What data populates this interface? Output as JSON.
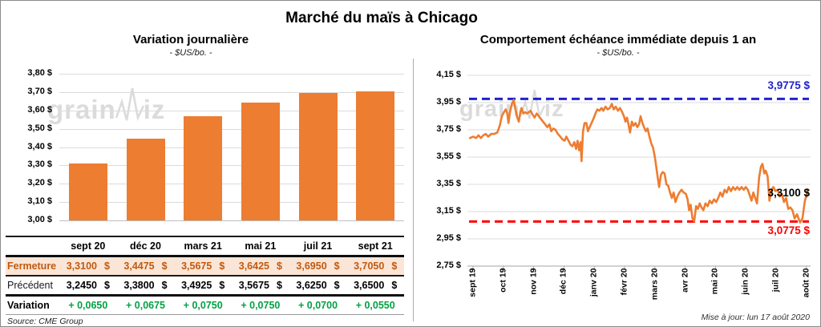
{
  "page": {
    "title": "Marché du maïs à Chicago",
    "updated_note": "Mise à jour: lun 17 août 2020",
    "source_note": "Source: CME Group",
    "watermark": {
      "part1": "grain",
      "part2": "iz"
    }
  },
  "colors": {
    "orange": "#ED7D31",
    "blue": "#2121CE",
    "red": "#FF0000",
    "green": "#00A244",
    "fermeture_text": "#C05A11",
    "fermeture_bg": "#FBE5D6",
    "grid": "#DBDBDB",
    "axis": "#A6A6A6"
  },
  "table": {
    "col_headers": [
      "sept 20",
      "déc 20",
      "mars 21",
      "mai 21",
      "juil 21",
      "sept 21"
    ],
    "rows": [
      {
        "label": "Fermeture",
        "values": [
          "3,3100",
          "3,4475",
          "3,5675",
          "3,6425",
          "3,6950",
          "3,7050"
        ],
        "suffix": "$"
      },
      {
        "label": "Précédent",
        "values": [
          "3,2450",
          "3,3800",
          "3,4925",
          "3,5675",
          "3,6250",
          "3,6500"
        ],
        "suffix": "$"
      },
      {
        "label": "Variation",
        "values": [
          "+ 0,0650",
          "+ 0,0675",
          "+ 0,0750",
          "+ 0,0750",
          "+ 0,0700",
          "+ 0,0550"
        ],
        "suffix": ""
      }
    ]
  },
  "chart_data": [
    {
      "type": "bar",
      "title": "Variation journalière",
      "subtitle": "- $US/bo. -",
      "categories": [
        "sept 20",
        "déc 20",
        "mars 21",
        "mai 21",
        "juil 21",
        "sept 21"
      ],
      "values": [
        3.31,
        3.4475,
        3.5675,
        3.6425,
        3.695,
        3.705
      ],
      "ylim": [
        3.0,
        3.8
      ],
      "y_tick_labels": [
        "3,80 $",
        "3,70 $",
        "3,60 $",
        "3,50 $",
        "3,40 $",
        "3,30 $",
        "3,20 $",
        "3,10 $",
        "3,00 $"
      ],
      "bar_color": "#ED7D31",
      "grid": true
    },
    {
      "type": "line",
      "title": "Comportement échéance immédiate depuis 1 an",
      "subtitle": "- $US/bo. -",
      "ylim": [
        2.75,
        4.15
      ],
      "y_tick_labels": [
        "4,15 $",
        "3,95 $",
        "3,75 $",
        "3,55 $",
        "3,35 $",
        "3,15 $",
        "2,95 $",
        "2,75 $"
      ],
      "x_tick_labels": [
        "sept 19",
        "oct 19",
        "nov 19",
        "déc 19",
        "janv 20",
        "févr 20",
        "mars 20",
        "avr 20",
        "mai 20",
        "juin 20",
        "juil 20",
        "août 20"
      ],
      "line_color": "#ED7D31",
      "ref_lines": [
        {
          "value": 3.9775,
          "label": "3,9775 $",
          "color": "#2121CE",
          "style": "dashed",
          "label_side": "above"
        },
        {
          "value": 3.0775,
          "label": "3,0775 $",
          "color": "#FF0000",
          "style": "dashed",
          "label_side": "below"
        }
      ],
      "last_value_label": {
        "value": 3.31,
        "label": "3,3100 $",
        "color": "#000000"
      },
      "series": [
        {
          "name": "échéance immédiate",
          "points": [
            [
              -0.1,
              3.69
            ],
            [
              0.0,
              3.7
            ],
            [
              0.1,
              3.69
            ],
            [
              0.18,
              3.71
            ],
            [
              0.26,
              3.69
            ],
            [
              0.34,
              3.71
            ],
            [
              0.42,
              3.72
            ],
            [
              0.5,
              3.7
            ],
            [
              0.6,
              3.72
            ],
            [
              0.7,
              3.72
            ],
            [
              0.8,
              3.73
            ],
            [
              0.88,
              3.78
            ],
            [
              0.95,
              3.85
            ],
            [
              1.02,
              3.88
            ],
            [
              1.08,
              3.9
            ],
            [
              1.13,
              3.87
            ],
            [
              1.17,
              3.8
            ],
            [
              1.22,
              3.88
            ],
            [
              1.28,
              3.94
            ],
            [
              1.34,
              3.97
            ],
            [
              1.4,
              3.9
            ],
            [
              1.46,
              3.84
            ],
            [
              1.51,
              3.81
            ],
            [
              1.56,
              3.88
            ],
            [
              1.6,
              3.91
            ],
            [
              1.66,
              3.87
            ],
            [
              1.72,
              3.88
            ],
            [
              1.78,
              3.87
            ],
            [
              1.84,
              3.88
            ],
            [
              1.9,
              3.89
            ],
            [
              1.97,
              3.86
            ],
            [
              2.03,
              3.84
            ],
            [
              2.1,
              3.87
            ],
            [
              2.17,
              3.85
            ],
            [
              2.24,
              3.83
            ],
            [
              2.31,
              3.81
            ],
            [
              2.38,
              3.79
            ],
            [
              2.45,
              3.77
            ],
            [
              2.52,
              3.79
            ],
            [
              2.58,
              3.74
            ],
            [
              2.65,
              3.76
            ],
            [
              2.72,
              3.75
            ],
            [
              2.8,
              3.72
            ],
            [
              2.88,
              3.7
            ],
            [
              2.95,
              3.68
            ],
            [
              3.02,
              3.67
            ],
            [
              3.08,
              3.7
            ],
            [
              3.15,
              3.67
            ],
            [
              3.22,
              3.64
            ],
            [
              3.28,
              3.63
            ],
            [
              3.34,
              3.66
            ],
            [
              3.4,
              3.61
            ],
            [
              3.45,
              3.67
            ],
            [
              3.5,
              3.6
            ],
            [
              3.55,
              3.66
            ],
            [
              3.58,
              3.52
            ],
            [
              3.63,
              3.74
            ],
            [
              3.68,
              3.8
            ],
            [
              3.74,
              3.8
            ],
            [
              3.79,
              3.74
            ],
            [
              3.85,
              3.77
            ],
            [
              3.91,
              3.8
            ],
            [
              3.97,
              3.83
            ],
            [
              4.04,
              3.87
            ],
            [
              4.1,
              3.9
            ],
            [
              4.17,
              3.89
            ],
            [
              4.24,
              3.91
            ],
            [
              4.3,
              3.89
            ],
            [
              4.37,
              3.92
            ],
            [
              4.44,
              3.9
            ],
            [
              4.51,
              3.91
            ],
            [
              4.58,
              3.94
            ],
            [
              4.64,
              3.9
            ],
            [
              4.71,
              3.92
            ],
            [
              4.78,
              3.89
            ],
            [
              4.85,
              3.91
            ],
            [
              4.92,
              3.88
            ],
            [
              4.98,
              3.85
            ],
            [
              5.03,
              3.81
            ],
            [
              5.08,
              3.84
            ],
            [
              5.13,
              3.79
            ],
            [
              5.18,
              3.73
            ],
            [
              5.24,
              3.81
            ],
            [
              5.3,
              3.78
            ],
            [
              5.36,
              3.8
            ],
            [
              5.42,
              3.77
            ],
            [
              5.48,
              3.79
            ],
            [
              5.53,
              3.85
            ],
            [
              5.59,
              3.8
            ],
            [
              5.64,
              3.77
            ],
            [
              5.7,
              3.74
            ],
            [
              5.76,
              3.76
            ],
            [
              5.82,
              3.7
            ],
            [
              5.88,
              3.65
            ],
            [
              5.94,
              3.62
            ],
            [
              6.0,
              3.55
            ],
            [
              6.05,
              3.47
            ],
            [
              6.1,
              3.39
            ],
            [
              6.14,
              3.33
            ],
            [
              6.2,
              3.42
            ],
            [
              6.26,
              3.44
            ],
            [
              6.32,
              3.43
            ],
            [
              6.38,
              3.35
            ],
            [
              6.44,
              3.34
            ],
            [
              6.5,
              3.29
            ],
            [
              6.56,
              3.25
            ],
            [
              6.62,
              3.29
            ],
            [
              6.68,
              3.22
            ],
            [
              6.74,
              3.26
            ],
            [
              6.81,
              3.29
            ],
            [
              6.88,
              3.31
            ],
            [
              6.95,
              3.29
            ],
            [
              7.02,
              3.28
            ],
            [
              7.08,
              3.24
            ],
            [
              7.13,
              3.16
            ],
            [
              7.18,
              3.2
            ],
            [
              7.24,
              3.1
            ],
            [
              7.3,
              3.08
            ],
            [
              7.36,
              3.19
            ],
            [
              7.42,
              3.17
            ],
            [
              7.48,
              3.21
            ],
            [
              7.54,
              3.18
            ],
            [
              7.6,
              3.16
            ],
            [
              7.67,
              3.21
            ],
            [
              7.74,
              3.19
            ],
            [
              7.81,
              3.23
            ],
            [
              7.88,
              3.21
            ],
            [
              7.95,
              3.24
            ],
            [
              8.02,
              3.22
            ],
            [
              8.09,
              3.25
            ],
            [
              8.16,
              3.29
            ],
            [
              8.23,
              3.26
            ],
            [
              8.3,
              3.31
            ],
            [
              8.37,
              3.29
            ],
            [
              8.44,
              3.33
            ],
            [
              8.51,
              3.3
            ],
            [
              8.58,
              3.33
            ],
            [
              8.65,
              3.31
            ],
            [
              8.72,
              3.33
            ],
            [
              8.79,
              3.31
            ],
            [
              8.86,
              3.33
            ],
            [
              8.93,
              3.31
            ],
            [
              9.0,
              3.33
            ],
            [
              9.07,
              3.31
            ],
            [
              9.13,
              3.27
            ],
            [
              9.19,
              3.23
            ],
            [
              9.25,
              3.29
            ],
            [
              9.31,
              3.25
            ],
            [
              9.37,
              3.21
            ],
            [
              9.44,
              3.4
            ],
            [
              9.5,
              3.48
            ],
            [
              9.55,
              3.5
            ],
            [
              9.61,
              3.43
            ],
            [
              9.66,
              3.45
            ],
            [
              9.72,
              3.41
            ],
            [
              9.78,
              3.23
            ],
            [
              9.84,
              3.31
            ],
            [
              9.91,
              3.33
            ],
            [
              9.98,
              3.3
            ],
            [
              10.05,
              3.31
            ],
            [
              10.12,
              3.26
            ],
            [
              10.19,
              3.28
            ],
            [
              10.26,
              3.22
            ],
            [
              10.33,
              3.25
            ],
            [
              10.4,
              3.17
            ],
            [
              10.47,
              3.18
            ],
            [
              10.54,
              3.16
            ],
            [
              10.61,
              3.1
            ],
            [
              10.69,
              3.13
            ],
            [
              10.79,
              3.07
            ],
            [
              10.87,
              3.1
            ],
            [
              10.95,
              3.23
            ],
            [
              11.06,
              3.31
            ]
          ]
        }
      ]
    }
  ]
}
